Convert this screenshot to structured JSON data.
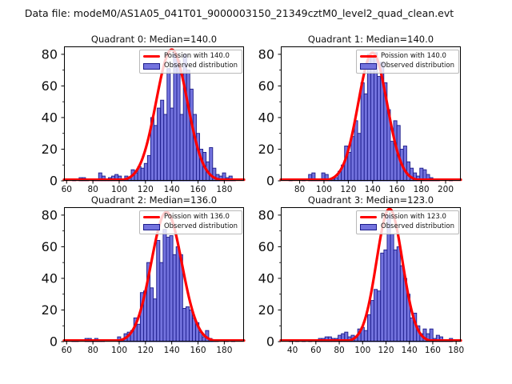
{
  "figure": {
    "suptitle": "Data file: modeM0/AS1A05_041T01_9000003150_21349cztM0_level2_quad_clean.evt",
    "background": "#ffffff"
  },
  "colors": {
    "bar_fill": "#7373de",
    "bar_edge": "#1b1b8a",
    "curve": "#ff0000",
    "axis": "#000000",
    "text": "#111111",
    "legend_border": "#b9b9b9"
  },
  "chart_data": [
    {
      "type": "bar",
      "quadrant": 0,
      "title": "Quadrant 0: Median=140.0",
      "median": 140.0,
      "legend": [
        "Poission with 140.0",
        "Observed distribution"
      ],
      "legend_position": "upper right",
      "grid": false,
      "xlim": [
        58,
        195
      ],
      "ylim": [
        0,
        85
      ],
      "xticks": [
        60,
        80,
        100,
        120,
        140,
        160,
        180
      ],
      "yticks": [
        0,
        20,
        40,
        60,
        80
      ],
      "y_minor_step": 10,
      "poisson": {
        "mean": 140.0,
        "amplitude": 83
      },
      "bins": {
        "start": 64.5,
        "width": 2.48
      },
      "counts": [
        1,
        0,
        2,
        2,
        1,
        0,
        1,
        1,
        5,
        3,
        1,
        2,
        3,
        4,
        3,
        1,
        3,
        2,
        7,
        5,
        9,
        8,
        11,
        16,
        40,
        35,
        46,
        51,
        42,
        71,
        46,
        81,
        76,
        42,
        80,
        70,
        58,
        42,
        30,
        20,
        18,
        12,
        21,
        8,
        4,
        3,
        5,
        2,
        3,
        1
      ]
    },
    {
      "type": "bar",
      "quadrant": 1,
      "title": "Quadrant 1: Median=140.0",
      "median": 140.0,
      "legend": [
        "Poission with 140.0",
        "Observed distribution"
      ],
      "legend_position": "upper right",
      "grid": false,
      "xlim": [
        64.5,
        212.5
      ],
      "ylim": [
        0,
        85
      ],
      "xticks": [
        80,
        100,
        120,
        140,
        160,
        180,
        200
      ],
      "yticks": [
        0,
        20,
        40,
        60,
        80
      ],
      "y_minor_step": 10,
      "poisson": {
        "mean": 140.0,
        "amplitude": 81
      },
      "bins": {
        "start": 71.2,
        "width": 2.69
      },
      "counts": [
        1,
        0,
        0,
        0,
        1,
        0,
        4,
        5,
        1,
        1,
        5,
        4,
        1,
        1,
        2,
        6,
        10,
        22,
        18,
        28,
        38,
        30,
        62,
        55,
        80,
        78,
        81,
        66,
        75,
        62,
        45,
        25,
        38,
        35,
        20,
        22,
        12,
        8,
        5,
        3,
        8,
        7,
        4,
        2,
        1,
        1,
        0,
        0,
        0,
        1
      ]
    },
    {
      "type": "bar",
      "quadrant": 2,
      "title": "Quadrant 2: Median=136.0",
      "median": 136.0,
      "legend": [
        "Poission with 136.0",
        "Observed distribution"
      ],
      "legend_position": "upper right",
      "grid": false,
      "xlim": [
        58,
        195
      ],
      "ylim": [
        0,
        85
      ],
      "xticks": [
        60,
        80,
        100,
        120,
        140,
        160,
        180
      ],
      "yticks": [
        0,
        20,
        40,
        60,
        80
      ],
      "y_minor_step": 10,
      "poisson": {
        "mean": 136.0,
        "amplitude": 82
      },
      "bins": {
        "start": 64.0,
        "width": 2.48
      },
      "counts": [
        1,
        1,
        0,
        0,
        2,
        2,
        1,
        2,
        1,
        1,
        0,
        0,
        0,
        0,
        3,
        1,
        5,
        6,
        7,
        15,
        11,
        31,
        32,
        50,
        34,
        27,
        64,
        50,
        71,
        66,
        67,
        55,
        60,
        55,
        21,
        22,
        20,
        15,
        12,
        6,
        3,
        7,
        2,
        1,
        1,
        0,
        0,
        1,
        0,
        1
      ]
    },
    {
      "type": "bar",
      "quadrant": 3,
      "title": "Quadrant 3: Median=123.0",
      "median": 123.0,
      "legend": [
        "Poission with 123.0",
        "Observed distribution"
      ],
      "legend_position": "upper right",
      "grid": false,
      "xlim": [
        30,
        184
      ],
      "ylim": [
        0,
        85
      ],
      "xticks": [
        40,
        60,
        80,
        100,
        120,
        140,
        160,
        180
      ],
      "yticks": [
        0,
        20,
        40,
        60,
        80
      ],
      "y_minor_step": 10,
      "poisson": {
        "mean": 123.0,
        "amplitude": 84
      },
      "bins": {
        "start": 37.0,
        "width": 2.8
      },
      "counts": [
        1,
        0,
        1,
        0,
        1,
        0,
        1,
        0,
        1,
        2,
        2,
        3,
        3,
        2,
        2,
        4,
        5,
        6,
        3,
        4,
        3,
        8,
        9,
        7,
        17,
        26,
        33,
        32,
        56,
        58,
        80,
        68,
        58,
        60,
        48,
        40,
        30,
        15,
        18,
        10,
        5,
        8,
        5,
        8,
        2,
        4,
        3,
        1,
        1,
        2
      ]
    }
  ]
}
